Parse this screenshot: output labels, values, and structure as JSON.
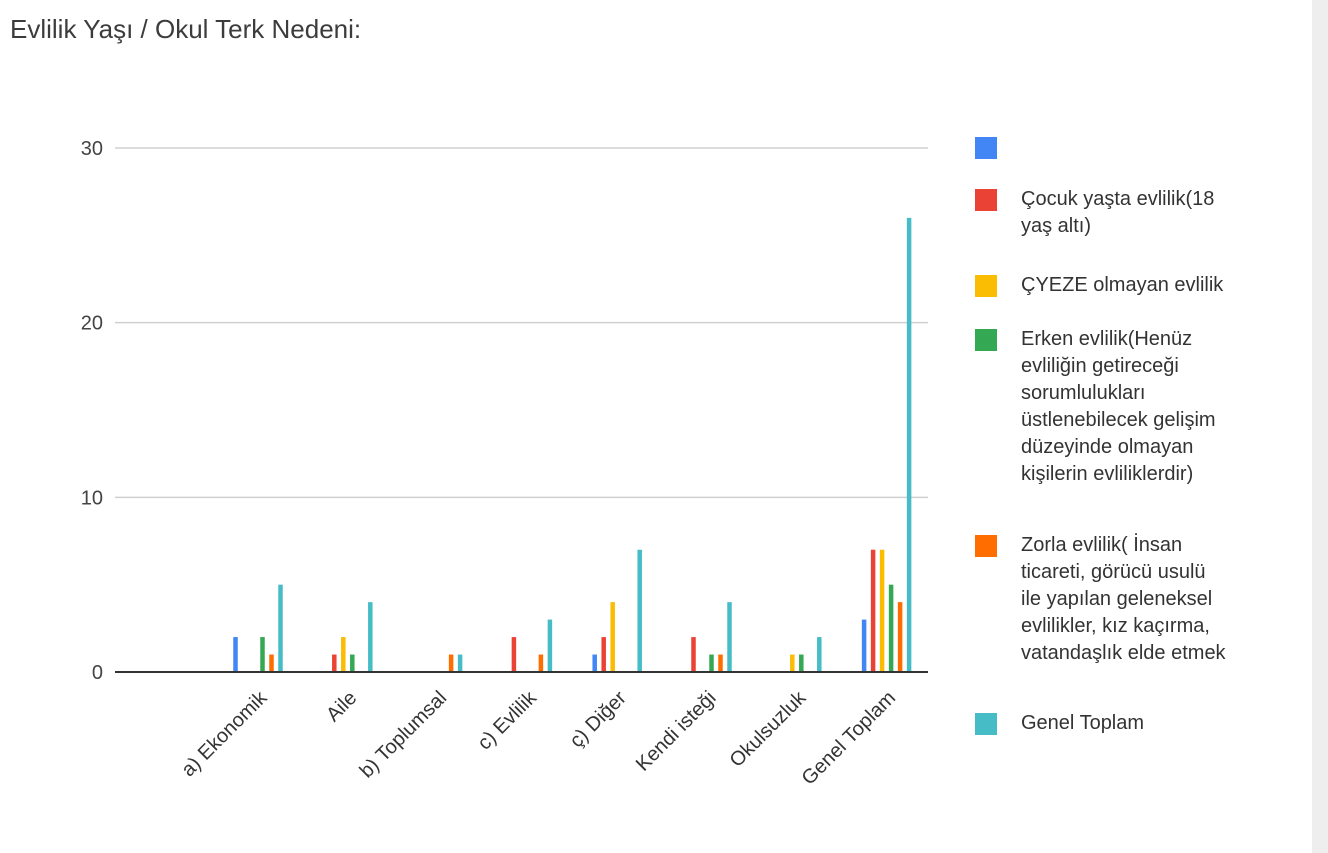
{
  "title": "Evlilik Yaşı / Okul Terk Nedeni:",
  "chart_data": {
    "type": "bar",
    "title": "Evlilik Yaşı / Okul Terk Nedeni:",
    "categories": [
      "a) Ekonomik",
      "Aile",
      "b) Toplumsal",
      "c) Evlilik",
      "ç) Diğer",
      "Kendi isteği",
      "Okulsuzluk",
      "Genel Toplam"
    ],
    "series": [
      {
        "name": "",
        "color": "#4285f4",
        "values": [
          2,
          0,
          0,
          0,
          1,
          0,
          0,
          3
        ]
      },
      {
        "name": "Çocuk yaşta evlilik(18\nyaş altı)",
        "color": "#ea4335",
        "values": [
          0,
          1,
          0,
          2,
          2,
          2,
          0,
          7
        ]
      },
      {
        "name": "ÇYEZE olmayan evlilik",
        "color": "#fbbc04",
        "values": [
          0,
          2,
          0,
          0,
          4,
          0,
          1,
          7
        ]
      },
      {
        "name": "Erken evlilik(Henüz\nevliliğin getireceği\nsorumlulukları\nüstlenebilecek gelişim\ndüzeyinde olmayan\nkişilerin evlilikler dir)",
        "color": "#34a853",
        "values": [
          2,
          1,
          0,
          0,
          0,
          1,
          1,
          5
        ]
      },
      {
        "name": "Zorla evlilik( İnsan\nticareti, görücü usulü\nile yapılan geleneksel\nevlilikler, kız kaçırma,\nvatandaşlık elde etmek",
        "color": "#ff6d01",
        "values": [
          1,
          0,
          1,
          1,
          0,
          1,
          0,
          4
        ]
      },
      {
        "name": "Genel Toplam",
        "color": "#46bdc6",
        "values": [
          5,
          4,
          1,
          3,
          7,
          4,
          2,
          26
        ]
      }
    ],
    "ylim": [
      0,
      30
    ],
    "yticks": [
      0,
      10,
      20,
      30
    ],
    "grid": true,
    "legend_position": "right"
  }
}
